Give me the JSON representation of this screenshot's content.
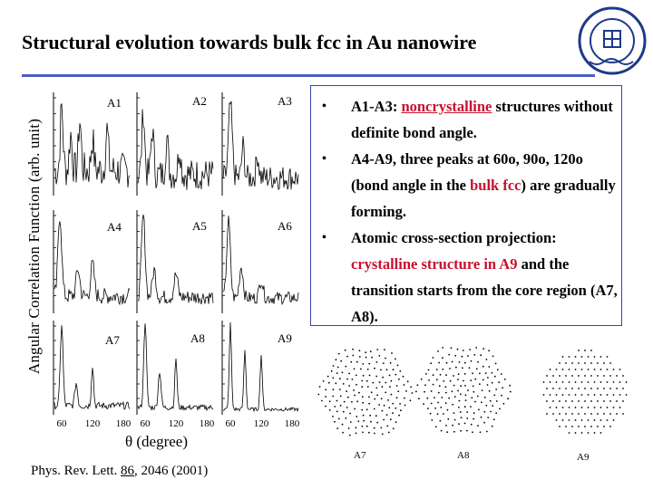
{
  "title": "Structural evolution towards bulk fcc in Au nanowire",
  "logo_text": "DALIAN UNIVERSITY OF TECHNOLOGY",
  "figure": {
    "ylabel": "Angular Correlation Function (arb. unit)",
    "xlabel": "θ (degree)",
    "xticks": [
      "60",
      "120",
      "180"
    ],
    "panels": [
      "A1",
      "A2",
      "A3",
      "A4",
      "A5",
      "A6",
      "A7",
      "A8",
      "A9"
    ]
  },
  "bullets": {
    "b1_prefix": "A1-A3: ",
    "b1_red": "noncrystalline",
    "b1_suffix": " structures without definite bond angle.",
    "b2_text": "A4-A9, three peaks at 60o, 90o, 120o (bond angle in the ",
    "b2_red": "bulk fcc",
    "b2_suffix": ") are gradually forming.",
    "b3_prefix": "Atomic cross-section projection: ",
    "b3_red": "crystalline structure in A9",
    "b3_suffix": " and the transition starts from the core region (A7, A8)."
  },
  "projections": [
    "A7",
    "A8",
    "A9"
  ],
  "reference": {
    "prefix": "Phys. Rev. Lett. ",
    "volume": "86",
    "suffix": ", 2046 (2001)"
  },
  "colors": {
    "title_rule": "#4a5fc1",
    "box_border": "#3347b0",
    "highlight": "#c8102e"
  }
}
